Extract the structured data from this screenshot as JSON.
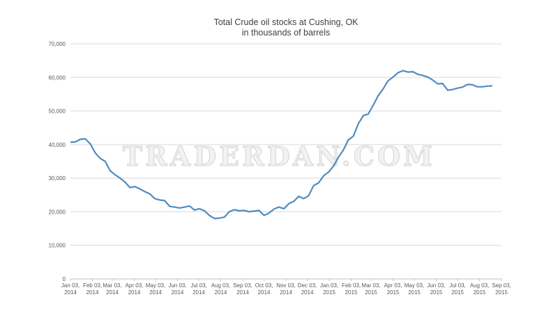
{
  "chart_data": {
    "type": "line",
    "title": "Total Crude oil stocks at Cushing, OK",
    "subtitle": "in thousands of barrels",
    "watermark": "TRADERDAN.COM",
    "x": [
      "2014-01-03",
      "2014-01-10",
      "2014-01-17",
      "2014-01-24",
      "2014-01-31",
      "2014-02-07",
      "2014-02-14",
      "2014-02-21",
      "2014-02-28",
      "2014-03-07",
      "2014-03-14",
      "2014-03-21",
      "2014-03-28",
      "2014-04-04",
      "2014-04-11",
      "2014-04-18",
      "2014-04-25",
      "2014-05-02",
      "2014-05-09",
      "2014-05-16",
      "2014-05-23",
      "2014-05-30",
      "2014-06-06",
      "2014-06-13",
      "2014-06-20",
      "2014-06-27",
      "2014-07-04",
      "2014-07-11",
      "2014-07-18",
      "2014-07-25",
      "2014-08-01",
      "2014-08-08",
      "2014-08-15",
      "2014-08-22",
      "2014-08-29",
      "2014-09-05",
      "2014-09-12",
      "2014-09-19",
      "2014-09-26",
      "2014-10-03",
      "2014-10-10",
      "2014-10-17",
      "2014-10-24",
      "2014-10-31",
      "2014-11-07",
      "2014-11-14",
      "2014-11-21",
      "2014-11-28",
      "2014-12-05",
      "2014-12-12",
      "2014-12-19",
      "2014-12-26",
      "2015-01-02",
      "2015-01-09",
      "2015-01-16",
      "2015-01-23",
      "2015-01-30",
      "2015-02-06",
      "2015-02-13",
      "2015-02-20",
      "2015-02-27",
      "2015-03-06",
      "2015-03-13",
      "2015-03-20",
      "2015-03-27",
      "2015-04-03",
      "2015-04-10",
      "2015-04-17",
      "2015-04-24",
      "2015-05-01",
      "2015-05-08",
      "2015-05-15",
      "2015-05-22",
      "2015-05-29",
      "2015-06-05",
      "2015-06-12",
      "2015-06-19",
      "2015-06-26",
      "2015-07-03",
      "2015-07-10",
      "2015-07-17",
      "2015-07-24",
      "2015-07-31",
      "2015-08-07",
      "2015-08-14",
      "2015-08-21"
    ],
    "series": [
      {
        "name": "Total Crude oil stocks",
        "color": "#4f8cc0",
        "values": [
          40700,
          40800,
          41600,
          41700,
          40200,
          37500,
          35900,
          35000,
          32200,
          31000,
          30000,
          28800,
          27200,
          27500,
          26800,
          26000,
          25300,
          23900,
          23500,
          23300,
          21600,
          21400,
          21100,
          21400,
          21700,
          20500,
          20900,
          20300,
          18900,
          18000,
          18100,
          18400,
          20000,
          20600,
          20300,
          20400,
          20000,
          20200,
          20400,
          18900,
          19600,
          20800,
          21400,
          20900,
          22400,
          23100,
          24600,
          23900,
          24800,
          27800,
          28600,
          30700,
          31800,
          33600,
          36200,
          38400,
          41400,
          42500,
          46200,
          48600,
          49100,
          51700,
          54500,
          56600,
          59000,
          60100,
          61400,
          62000,
          61600,
          61700,
          60900,
          60600,
          60100,
          59200,
          58100,
          58200,
          56200,
          56400,
          56800,
          57100,
          57900,
          57800,
          57200,
          57200,
          57400,
          57500
        ]
      }
    ],
    "xlim": [
      "2014-01-03",
      "2015-09-03"
    ],
    "xticks": [
      {
        "value": "2014-01-03",
        "label": "Jan 03, 2014"
      },
      {
        "value": "2014-02-03",
        "label": "Feb 03, 2014"
      },
      {
        "value": "2014-03-03",
        "label": "Mar 03, 2014"
      },
      {
        "value": "2014-04-03",
        "label": "Apr 03, 2014"
      },
      {
        "value": "2014-05-03",
        "label": "May 03, 2014"
      },
      {
        "value": "2014-06-03",
        "label": "Jun 03, 2014"
      },
      {
        "value": "2014-07-03",
        "label": "Jul 03, 2014"
      },
      {
        "value": "2014-08-03",
        "label": "Aug 03, 2014"
      },
      {
        "value": "2014-09-03",
        "label": "Sep 03, 2014"
      },
      {
        "value": "2014-10-03",
        "label": "Oct 03, 2014"
      },
      {
        "value": "2014-11-03",
        "label": "Nov 03, 2014"
      },
      {
        "value": "2014-12-03",
        "label": "Dec 03, 2014"
      },
      {
        "value": "2015-01-03",
        "label": "Jan 03, 2015"
      },
      {
        "value": "2015-02-03",
        "label": "Feb 03, 2015"
      },
      {
        "value": "2015-03-03",
        "label": "Mar 03, 2015"
      },
      {
        "value": "2015-04-03",
        "label": "Apr 03, 2015"
      },
      {
        "value": "2015-05-03",
        "label": "May 03, 2015"
      },
      {
        "value": "2015-06-03",
        "label": "Jun 03, 2015"
      },
      {
        "value": "2015-07-03",
        "label": "Jul 03, 2015"
      },
      {
        "value": "2015-08-03",
        "label": "Aug 03, 2015"
      },
      {
        "value": "2015-09-03",
        "label": "Sep 03, 2015"
      }
    ],
    "ylim": [
      0,
      70000
    ],
    "yticks": [
      0,
      {
        "value": 10000,
        "label": "10,000"
      },
      {
        "value": 20000,
        "label": "20,000"
      },
      {
        "value": 30000,
        "label": "30,000"
      },
      {
        "value": 40000,
        "label": "40,000"
      },
      {
        "value": 50000,
        "label": "50,000"
      },
      {
        "value": 60000,
        "label": "60,000"
      },
      {
        "value": 70000,
        "label": "70,000"
      }
    ],
    "grid": true
  }
}
